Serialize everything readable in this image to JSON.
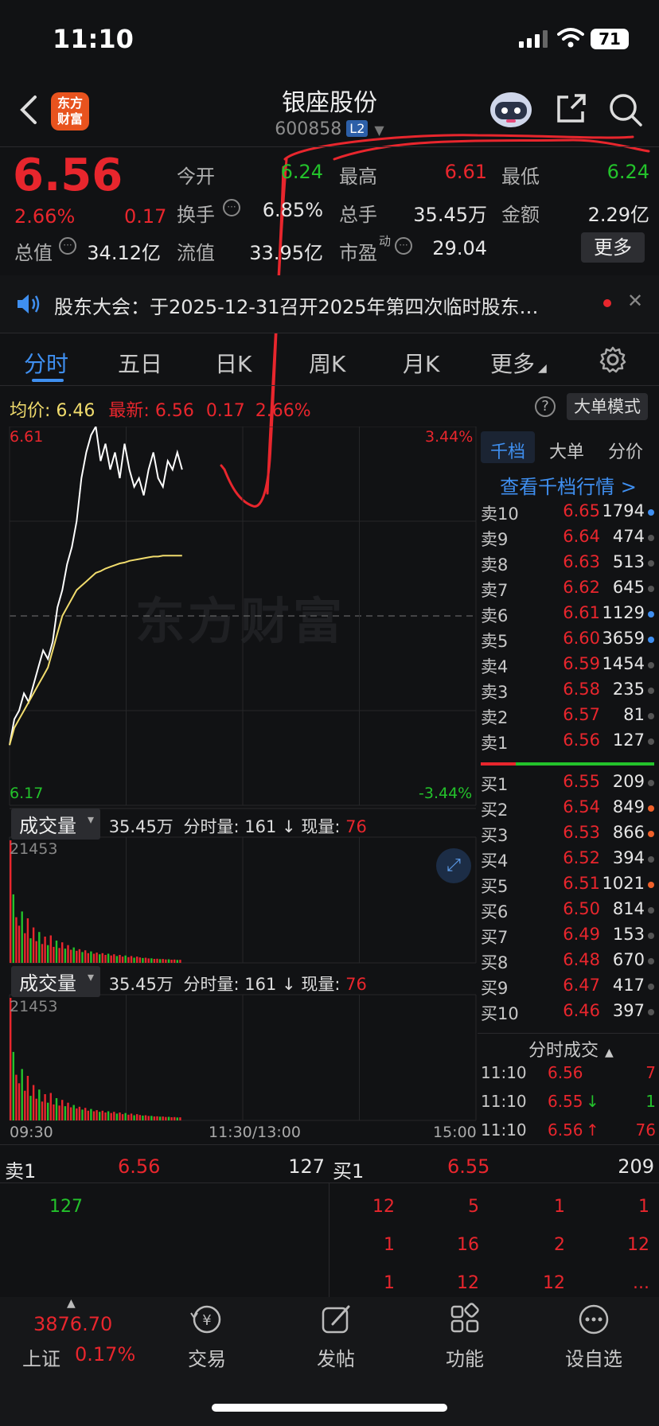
{
  "status_bar": {
    "time": "11:10",
    "battery": "71"
  },
  "header": {
    "stock_name": "银座股份",
    "stock_code": "600858",
    "level_badge": "L2",
    "logo_line1": "东方",
    "logo_line2": "财富"
  },
  "quote": {
    "price": "6.56",
    "change_pct": "2.66%",
    "change": "0.17",
    "fields": [
      {
        "label": "今开",
        "value": "6.24",
        "color": "green"
      },
      {
        "label": "最高",
        "value": "6.61",
        "color": "red"
      },
      {
        "label": "最低",
        "value": "6.24",
        "color": "green"
      },
      {
        "label": "换手",
        "value": "6.85%",
        "color": "white"
      },
      {
        "label": "总手",
        "value": "35.45万",
        "color": "white"
      },
      {
        "label": "金额",
        "value": "2.29亿",
        "color": "white"
      },
      {
        "label": "总值",
        "value": "34.12亿",
        "color": "white"
      },
      {
        "label": "流值",
        "value": "33.95亿",
        "color": "white"
      },
      {
        "label": "市盈",
        "value": "29.04",
        "color": "white"
      }
    ],
    "pe_superscript": "动",
    "more_label": "更多"
  },
  "notice": {
    "text": "股东大会：于2025-12-31召开2025年第四次临时股东…"
  },
  "tabs": [
    "分时",
    "五日",
    "日K",
    "周K",
    "月K",
    "更多"
  ],
  "avg_info": {
    "avg_label": "均价:",
    "avg_value": "6.46",
    "latest_label": "最新:",
    "latest_value": "6.56",
    "latest_chg": "0.17",
    "latest_pct": "2.66%",
    "big_order_label": "大单模式"
  },
  "chart_labels": {
    "y_top": "6.61",
    "y_bottom": "6.17",
    "pct_top": "3.44%",
    "pct_bottom": "-3.44%",
    "x_start": "09:30",
    "x_mid": "11:30/13:00",
    "x_end": "15:00",
    "watermark": "东方财富"
  },
  "chart_data": {
    "type": "line",
    "ylim": [
      6.17,
      6.61
    ],
    "series": [
      {
        "values": [
          6.24,
          6.27,
          6.28,
          6.3,
          6.29,
          6.31,
          6.33,
          6.35,
          6.34,
          6.36,
          6.4,
          6.42,
          6.45,
          6.47,
          6.5,
          6.55,
          6.58,
          6.6,
          6.61,
          6.57,
          6.59,
          6.56,
          6.58,
          6.55,
          6.59,
          6.56,
          6.54,
          6.55,
          6.53,
          6.56,
          6.58,
          6.55,
          6.54,
          6.57,
          6.56,
          6.58,
          6.56
        ]
      },
      {
        "values": [
          6.24,
          6.26,
          6.27,
          6.28,
          6.29,
          6.3,
          6.31,
          6.32,
          6.33,
          6.35,
          6.37,
          6.39,
          6.4,
          6.41,
          6.42,
          6.425,
          6.43,
          6.435,
          6.44,
          6.442,
          6.445,
          6.447,
          6.449,
          6.451,
          6.452,
          6.454,
          6.455,
          6.456,
          6.457,
          6.458,
          6.459,
          6.459,
          6.46,
          6.46,
          6.46,
          6.46,
          6.46
        ]
      }
    ],
    "volume": {
      "max_label": "21453",
      "max": 21453,
      "values": [
        21453,
        12000,
        8000,
        6500,
        9000,
        5200,
        7800,
        4300,
        6200,
        3800,
        5400,
        3300,
        4600,
        3100,
        4800,
        2800,
        3900,
        2600,
        3600,
        2500,
        3100,
        2300,
        2700,
        2100,
        2400,
        1900,
        2200,
        1700,
        2000,
        1600,
        1800,
        1500,
        1700,
        1400,
        1600,
        1300,
        1500,
        1200,
        1400,
        1100,
        1300,
        1000,
        1200,
        900,
        1100,
        950,
        850,
        900,
        780,
        800,
        700,
        720,
        650,
        680,
        600,
        620,
        560,
        580,
        520,
        540
      ]
    }
  },
  "volume_headers": [
    {
      "select": "成交量",
      "total": "35.45万",
      "minute_label": "分时量:",
      "minute_val": "161",
      "now_label": "现量:",
      "now_val": "76"
    },
    {
      "select": "成交量",
      "total": "35.45万",
      "minute_label": "分时量:",
      "minute_val": "161",
      "now_label": "现量:",
      "now_val": "76"
    }
  ],
  "order_book": {
    "tabs": [
      "千档",
      "大单",
      "分价"
    ],
    "link": "查看千档行情 >",
    "asks": [
      {
        "label": "卖10",
        "price": "6.65",
        "vol": "1794",
        "dot": "#3f8ff0"
      },
      {
        "label": "卖9",
        "price": "6.64",
        "vol": "474",
        "dot": "#555555"
      },
      {
        "label": "卖8",
        "price": "6.63",
        "vol": "513",
        "dot": "#555555"
      },
      {
        "label": "卖7",
        "price": "6.62",
        "vol": "645",
        "dot": "#555555"
      },
      {
        "label": "卖6",
        "price": "6.61",
        "vol": "1129",
        "dot": "#3f8ff0"
      },
      {
        "label": "卖5",
        "price": "6.60",
        "vol": "3659",
        "dot": "#3f8ff0"
      },
      {
        "label": "卖4",
        "price": "6.59",
        "vol": "1454",
        "dot": "#555555"
      },
      {
        "label": "卖3",
        "price": "6.58",
        "vol": "235",
        "dot": "#555555"
      },
      {
        "label": "卖2",
        "price": "6.57",
        "vol": "81",
        "dot": "#555555"
      },
      {
        "label": "卖1",
        "price": "6.56",
        "vol": "127",
        "dot": "#555555"
      }
    ],
    "bids": [
      {
        "label": "买1",
        "price": "6.55",
        "vol": "209",
        "dot": "#555555"
      },
      {
        "label": "买2",
        "price": "6.54",
        "vol": "849",
        "dot": "#f0612a"
      },
      {
        "label": "买3",
        "price": "6.53",
        "vol": "866",
        "dot": "#f0612a"
      },
      {
        "label": "买4",
        "price": "6.52",
        "vol": "394",
        "dot": "#555555"
      },
      {
        "label": "买5",
        "price": "6.51",
        "vol": "1021",
        "dot": "#f0612a"
      },
      {
        "label": "买6",
        "price": "6.50",
        "vol": "814",
        "dot": "#555555"
      },
      {
        "label": "买7",
        "price": "6.49",
        "vol": "153",
        "dot": "#555555"
      },
      {
        "label": "买8",
        "price": "6.48",
        "vol": "670",
        "dot": "#555555"
      },
      {
        "label": "买9",
        "price": "6.47",
        "vol": "417",
        "dot": "#555555"
      },
      {
        "label": "买10",
        "price": "6.46",
        "vol": "397",
        "dot": "#555555"
      }
    ]
  },
  "ticks": {
    "title": "分时成交",
    "rows": [
      {
        "time": "11:10",
        "price": "6.56",
        "arrow": "",
        "vol": "7",
        "vol_color": "red"
      },
      {
        "time": "11:10",
        "price": "6.55",
        "arrow": "↓",
        "vol": "1",
        "vol_color": "green"
      },
      {
        "time": "11:10",
        "price": "6.56",
        "arrow": "↑",
        "vol": "76",
        "vol_color": "red"
      }
    ]
  },
  "strip": {
    "sell_label": "卖1",
    "sell_price": "6.56",
    "sell_vol": "127",
    "buy_label": "买1",
    "buy_price": "6.55",
    "buy_vol": "209"
  },
  "deals": {
    "sell": [
      "127"
    ],
    "buy_rows": [
      [
        "12",
        "5",
        "1",
        "1"
      ],
      [
        "1",
        "16",
        "2",
        "12"
      ],
      [
        "1",
        "12",
        "12",
        "..."
      ]
    ]
  },
  "nav": {
    "index_value": "3876.70",
    "index_name": "上证",
    "index_pct": "0.17%",
    "items": [
      "交易",
      "发帖",
      "功能",
      "设自选"
    ]
  }
}
